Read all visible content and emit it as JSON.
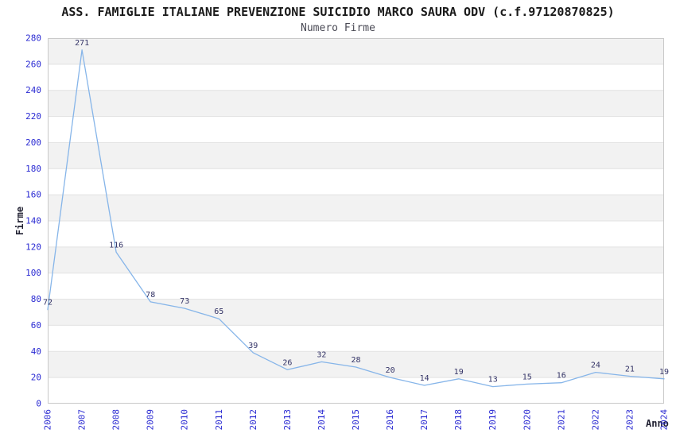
{
  "chart_data": {
    "type": "line",
    "title": "ASS. FAMIGLIE ITALIANE PREVENZIONE SUICIDIO MARCO SAURA ODV (c.f.97120870825)",
    "subtitle": "Numero Firme",
    "xlabel": "Anno",
    "ylabel": "Firme",
    "categories": [
      "2006",
      "2007",
      "2008",
      "2009",
      "2010",
      "2011",
      "2012",
      "2013",
      "2014",
      "2015",
      "2016",
      "2017",
      "2018",
      "2019",
      "2020",
      "2021",
      "2022",
      "2023",
      "2024"
    ],
    "values": [
      72,
      271,
      116,
      78,
      73,
      65,
      39,
      26,
      32,
      28,
      20,
      14,
      19,
      13,
      15,
      16,
      24,
      21,
      19
    ],
    "ylim": [
      0,
      280
    ],
    "ytick_step": 20,
    "grid": true,
    "legend": "none",
    "colors": {
      "line": "#86b5e9",
      "tick_label": "#2a2ad2",
      "value_label": "#333366",
      "band_fill": "#f2f2f2",
      "band_alt_fill": "#ffffff",
      "grid_line": "#e2e2e2",
      "plot_border": "#c9c9c9",
      "title": "#1a1a1a",
      "subtitle": "#4a4a55",
      "axis_title": "#222233"
    }
  }
}
